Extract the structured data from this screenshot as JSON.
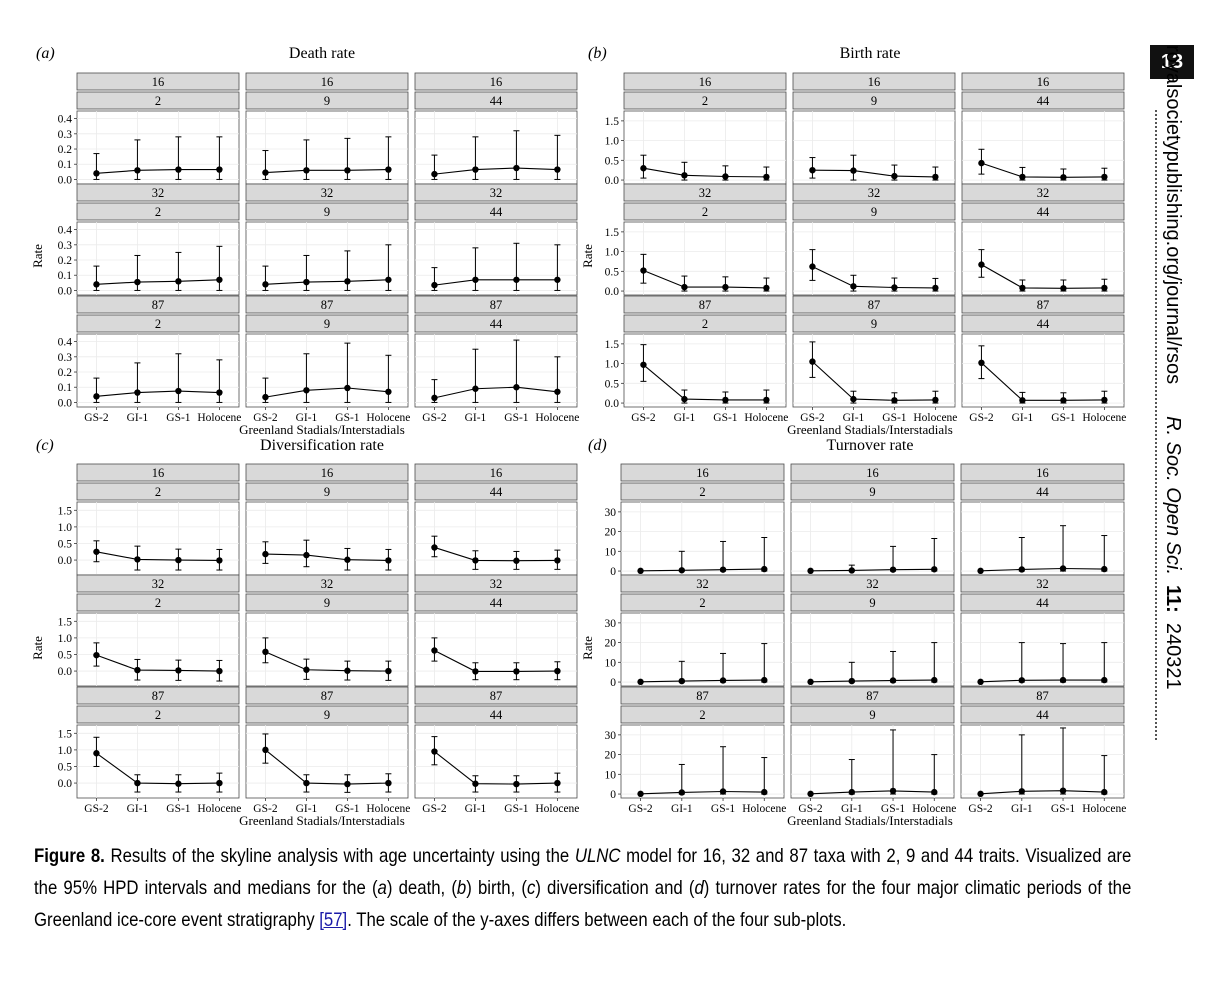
{
  "page_number": "13",
  "running_head": {
    "site": "royalsocietypublishing.org/journal/rsos",
    "journal": "R. Soc. Open Sci.",
    "volume": "11:",
    "article": "240321"
  },
  "caption": {
    "label": "Figure 8.",
    "part1": " Results of the skyline analysis with age uncertainty using the ",
    "model": "ULNC",
    "part2": " model for 16, 32 and 87 taxa with 2, 9 and 44 traits. Visualized are the 95% HPD intervals and medians for the (",
    "a": "a",
    "part3": ") death, (",
    "b": "b",
    "part4": ") birth, (",
    "c": "c",
    "part5": ") diversification and (",
    "d": "d",
    "part6": ") turnover rates for the four major climatic periods of the Greenland ice-core event stratigraphy ",
    "ref": "[57]",
    "part7": ". The scale of the y-axes differs between each of the four sub-plots."
  },
  "chart_data": [
    {
      "panel": "(a)",
      "type": "scatter",
      "title": "Death rate",
      "xlabel": "Greenland Stadials/Interstadials",
      "ylabel": "Rate",
      "categories": [
        "GS-2",
        "GI-1",
        "GS-1",
        "Holocene"
      ],
      "ylim": [
        -0.03,
        0.45
      ],
      "yticks": [
        0.0,
        0.1,
        0.2,
        0.3,
        0.4
      ],
      "tick_labels": [
        "0.0",
        "0.1",
        "0.2",
        "0.3",
        "0.4"
      ],
      "facets": [
        {
          "taxa": "16",
          "traits": "2",
          "median": [
            0.04,
            0.06,
            0.065,
            0.065
          ],
          "lower": [
            0.0,
            0.0,
            0.0,
            0.0
          ],
          "upper": [
            0.17,
            0.26,
            0.28,
            0.28
          ]
        },
        {
          "taxa": "16",
          "traits": "9",
          "median": [
            0.045,
            0.06,
            0.06,
            0.065
          ],
          "lower": [
            0.0,
            0.0,
            0.0,
            0.0
          ],
          "upper": [
            0.19,
            0.26,
            0.27,
            0.28
          ]
        },
        {
          "taxa": "16",
          "traits": "44",
          "median": [
            0.035,
            0.065,
            0.075,
            0.065
          ],
          "lower": [
            0.0,
            0.0,
            0.0,
            0.0
          ],
          "upper": [
            0.16,
            0.28,
            0.32,
            0.29
          ]
        },
        {
          "taxa": "32",
          "traits": "2",
          "median": [
            0.04,
            0.055,
            0.06,
            0.07
          ],
          "lower": [
            0.0,
            0.0,
            0.0,
            0.0
          ],
          "upper": [
            0.16,
            0.23,
            0.25,
            0.29
          ]
        },
        {
          "taxa": "32",
          "traits": "9",
          "median": [
            0.04,
            0.055,
            0.06,
            0.07
          ],
          "lower": [
            0.0,
            0.0,
            0.0,
            0.0
          ],
          "upper": [
            0.16,
            0.23,
            0.26,
            0.3
          ]
        },
        {
          "taxa": "32",
          "traits": "44",
          "median": [
            0.035,
            0.07,
            0.07,
            0.07
          ],
          "lower": [
            0.0,
            0.0,
            0.0,
            0.0
          ],
          "upper": [
            0.15,
            0.28,
            0.31,
            0.3
          ]
        },
        {
          "taxa": "87",
          "traits": "2",
          "median": [
            0.04,
            0.065,
            0.075,
            0.065
          ],
          "lower": [
            0.0,
            0.0,
            0.0,
            0.0
          ],
          "upper": [
            0.16,
            0.26,
            0.32,
            0.28
          ]
        },
        {
          "taxa": "87",
          "traits": "9",
          "median": [
            0.035,
            0.08,
            0.095,
            0.07
          ],
          "lower": [
            0.0,
            0.0,
            0.0,
            0.0
          ],
          "upper": [
            0.16,
            0.32,
            0.39,
            0.31
          ]
        },
        {
          "taxa": "87",
          "traits": "44",
          "median": [
            0.03,
            0.09,
            0.1,
            0.07
          ],
          "lower": [
            0.0,
            0.0,
            0.0,
            0.0
          ],
          "upper": [
            0.15,
            0.35,
            0.41,
            0.3
          ]
        }
      ]
    },
    {
      "panel": "(b)",
      "type": "scatter",
      "title": "Birth rate",
      "xlabel": "Greenland Stadials/Interstadials",
      "ylabel": "Rate",
      "categories": [
        "GS-2",
        "GI-1",
        "GS-1",
        "Holocene"
      ],
      "ylim": [
        -0.1,
        1.75
      ],
      "yticks": [
        0.0,
        0.5,
        1.0,
        1.5
      ],
      "tick_labels": [
        "0.0",
        "0.5",
        "1.0",
        "1.5"
      ],
      "facets": [
        {
          "taxa": "16",
          "traits": "2",
          "median": [
            0.3,
            0.12,
            0.09,
            0.08
          ],
          "lower": [
            0.05,
            0.0,
            0.0,
            0.0
          ],
          "upper": [
            0.63,
            0.45,
            0.36,
            0.33
          ]
        },
        {
          "taxa": "16",
          "traits": "9",
          "median": [
            0.25,
            0.24,
            0.1,
            0.08
          ],
          "lower": [
            0.05,
            0.0,
            0.0,
            0.0
          ],
          "upper": [
            0.57,
            0.63,
            0.38,
            0.33
          ]
        },
        {
          "taxa": "16",
          "traits": "44",
          "median": [
            0.43,
            0.08,
            0.07,
            0.08
          ],
          "lower": [
            0.15,
            0.0,
            0.0,
            0.0
          ],
          "upper": [
            0.78,
            0.32,
            0.28,
            0.3
          ]
        },
        {
          "taxa": "32",
          "traits": "2",
          "median": [
            0.52,
            0.1,
            0.1,
            0.08
          ],
          "lower": [
            0.2,
            0.0,
            0.0,
            0.0
          ],
          "upper": [
            0.93,
            0.38,
            0.36,
            0.33
          ]
        },
        {
          "taxa": "32",
          "traits": "9",
          "median": [
            0.62,
            0.12,
            0.09,
            0.08
          ],
          "lower": [
            0.27,
            0.0,
            0.0,
            0.0
          ],
          "upper": [
            1.05,
            0.4,
            0.33,
            0.32
          ]
        },
        {
          "taxa": "32",
          "traits": "44",
          "median": [
            0.67,
            0.08,
            0.07,
            0.08
          ],
          "lower": [
            0.35,
            0.0,
            0.0,
            0.0
          ],
          "upper": [
            1.05,
            0.28,
            0.28,
            0.3
          ]
        },
        {
          "taxa": "87",
          "traits": "2",
          "median": [
            0.97,
            0.1,
            0.08,
            0.08
          ],
          "lower": [
            0.55,
            0.0,
            0.0,
            0.0
          ],
          "upper": [
            1.48,
            0.33,
            0.28,
            0.33
          ]
        },
        {
          "taxa": "87",
          "traits": "9",
          "median": [
            1.05,
            0.1,
            0.07,
            0.08
          ],
          "lower": [
            0.65,
            0.0,
            0.0,
            0.0
          ],
          "upper": [
            1.55,
            0.3,
            0.26,
            0.3
          ]
        },
        {
          "taxa": "87",
          "traits": "44",
          "median": [
            1.02,
            0.07,
            0.07,
            0.08
          ],
          "lower": [
            0.62,
            0.0,
            0.0,
            0.0
          ],
          "upper": [
            1.45,
            0.27,
            0.26,
            0.3
          ]
        }
      ]
    },
    {
      "panel": "(c)",
      "type": "scatter",
      "title": "Diversification rate",
      "xlabel": "Greenland Stadials/Interstadials",
      "ylabel": "Rate",
      "categories": [
        "GS-2",
        "GI-1",
        "GS-1",
        "Holocene"
      ],
      "ylim": [
        -0.45,
        1.75
      ],
      "yticks": [
        0.0,
        0.5,
        1.0,
        1.5
      ],
      "tick_labels": [
        "0.0",
        "0.5",
        "1.0",
        "1.5"
      ],
      "facets": [
        {
          "taxa": "16",
          "traits": "2",
          "median": [
            0.25,
            0.02,
            0.0,
            -0.01
          ],
          "lower": [
            -0.05,
            -0.3,
            -0.3,
            -0.3
          ],
          "upper": [
            0.58,
            0.42,
            0.33,
            0.32
          ]
        },
        {
          "taxa": "16",
          "traits": "9",
          "median": [
            0.18,
            0.15,
            0.01,
            -0.01
          ],
          "lower": [
            -0.1,
            -0.2,
            -0.3,
            -0.3
          ],
          "upper": [
            0.55,
            0.6,
            0.35,
            0.32
          ]
        },
        {
          "taxa": "16",
          "traits": "44",
          "median": [
            0.38,
            -0.01,
            -0.02,
            -0.01
          ],
          "lower": [
            0.1,
            -0.28,
            -0.28,
            -0.28
          ],
          "upper": [
            0.72,
            0.28,
            0.26,
            0.3
          ]
        },
        {
          "taxa": "32",
          "traits": "2",
          "median": [
            0.48,
            0.03,
            0.02,
            0.0
          ],
          "lower": [
            0.15,
            -0.27,
            -0.28,
            -0.3
          ],
          "upper": [
            0.85,
            0.35,
            0.33,
            0.32
          ]
        },
        {
          "taxa": "32",
          "traits": "9",
          "median": [
            0.58,
            0.04,
            0.01,
            0.0
          ],
          "lower": [
            0.25,
            -0.25,
            -0.27,
            -0.28
          ],
          "upper": [
            1.0,
            0.36,
            0.3,
            0.3
          ]
        },
        {
          "taxa": "32",
          "traits": "44",
          "median": [
            0.62,
            -0.01,
            -0.01,
            0.0
          ],
          "lower": [
            0.3,
            -0.26,
            -0.26,
            -0.26
          ],
          "upper": [
            1.0,
            0.25,
            0.25,
            0.28
          ]
        },
        {
          "taxa": "87",
          "traits": "2",
          "median": [
            0.9,
            0.0,
            -0.02,
            0.0
          ],
          "lower": [
            0.5,
            -0.27,
            -0.27,
            -0.27
          ],
          "upper": [
            1.38,
            0.25,
            0.25,
            0.3
          ]
        },
        {
          "taxa": "87",
          "traits": "9",
          "median": [
            1.0,
            0.0,
            -0.03,
            0.0
          ],
          "lower": [
            0.6,
            -0.27,
            -0.28,
            -0.27
          ],
          "upper": [
            1.48,
            0.25,
            0.25,
            0.28
          ]
        },
        {
          "taxa": "87",
          "traits": "44",
          "median": [
            0.95,
            -0.02,
            -0.03,
            0.0
          ],
          "lower": [
            0.55,
            -0.27,
            -0.27,
            -0.27
          ],
          "upper": [
            1.4,
            0.22,
            0.22,
            0.3
          ]
        }
      ]
    },
    {
      "panel": "(d)",
      "type": "scatter",
      "title": "Turnover rate",
      "xlabel": "Greenland Stadials/Interstadials",
      "ylabel": "Rate",
      "categories": [
        "GS-2",
        "GI-1",
        "GS-1",
        "Holocene"
      ],
      "ylim": [
        -2,
        35
      ],
      "yticks": [
        0,
        10,
        20,
        30
      ],
      "tick_labels": [
        "0",
        "10",
        "20",
        "30"
      ],
      "facets": [
        {
          "taxa": "16",
          "traits": "2",
          "median": [
            0.1,
            0.4,
            0.7,
            1.0
          ],
          "lower": [
            0.0,
            0.0,
            0.0,
            0.0
          ],
          "upper": [
            0.3,
            10.0,
            15.0,
            17.0
          ]
        },
        {
          "taxa": "16",
          "traits": "9",
          "median": [
            0.1,
            0.3,
            0.7,
            0.9
          ],
          "lower": [
            0.0,
            0.0,
            0.0,
            0.0
          ],
          "upper": [
            0.3,
            3.0,
            12.5,
            16.5
          ]
        },
        {
          "taxa": "16",
          "traits": "44",
          "median": [
            0.1,
            0.8,
            1.3,
            1.0
          ],
          "lower": [
            0.0,
            0.0,
            0.0,
            0.0
          ],
          "upper": [
            0.3,
            17.0,
            23.0,
            18.0
          ]
        },
        {
          "taxa": "32",
          "traits": "2",
          "median": [
            0.1,
            0.5,
            0.8,
            1.0
          ],
          "lower": [
            0.0,
            0.0,
            0.0,
            0.0
          ],
          "upper": [
            0.3,
            10.5,
            14.5,
            19.5
          ]
        },
        {
          "taxa": "32",
          "traits": "9",
          "median": [
            0.1,
            0.5,
            0.8,
            1.0
          ],
          "lower": [
            0.0,
            0.0,
            0.0,
            0.0
          ],
          "upper": [
            0.3,
            10.0,
            15.5,
            20.0
          ]
        },
        {
          "taxa": "32",
          "traits": "44",
          "median": [
            0.1,
            0.9,
            1.0,
            1.0
          ],
          "lower": [
            0.0,
            0.0,
            0.0,
            0.0
          ],
          "upper": [
            0.3,
            20.0,
            19.5,
            20.0
          ]
        },
        {
          "taxa": "87",
          "traits": "2",
          "median": [
            0.1,
            0.8,
            1.3,
            1.0
          ],
          "lower": [
            0.0,
            0.0,
            0.0,
            0.0
          ],
          "upper": [
            0.3,
            15.0,
            24.0,
            18.5
          ]
        },
        {
          "taxa": "87",
          "traits": "9",
          "median": [
            0.1,
            1.0,
            1.6,
            1.0
          ],
          "lower": [
            0.0,
            0.0,
            0.0,
            0.0
          ],
          "upper": [
            0.3,
            17.5,
            32.5,
            20.0
          ]
        },
        {
          "taxa": "87",
          "traits": "44",
          "median": [
            0.1,
            1.4,
            1.7,
            1.0
          ],
          "lower": [
            0.0,
            0.0,
            0.0,
            0.0
          ],
          "upper": [
            0.3,
            30.0,
            33.5,
            19.5
          ]
        }
      ]
    }
  ]
}
